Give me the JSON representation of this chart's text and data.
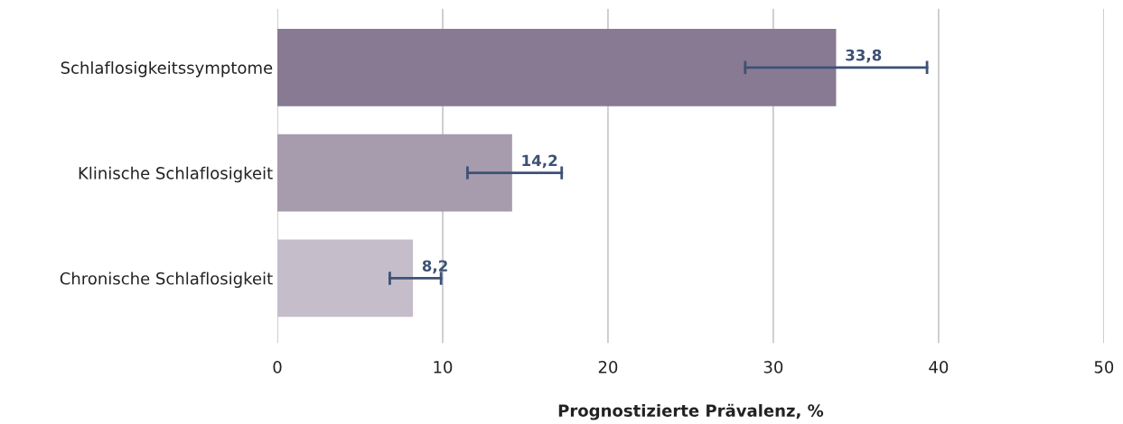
{
  "chart_data": {
    "type": "bar",
    "orientation": "horizontal",
    "xlabel": "Prognostizierte Prävalenz, %",
    "categories": [
      "Schlaflosigkeitssymptome",
      "Klinische Schlaflosigkeit",
      "Chronische Schlaflosigkeit"
    ],
    "values": [
      33.8,
      14.2,
      8.2
    ],
    "colors": [
      "#887a93",
      "#a79bae",
      "#c5bdca"
    ],
    "errors": [
      [
        28.3,
        39.3
      ],
      [
        11.5,
        17.2
      ],
      [
        6.8,
        9.9
      ]
    ],
    "value_labels": [
      "33,8",
      "14,2",
      "8,2"
    ],
    "xlim": [
      0,
      50
    ],
    "xticks": [
      0,
      10,
      20,
      30,
      40,
      50
    ],
    "grid": "x"
  }
}
